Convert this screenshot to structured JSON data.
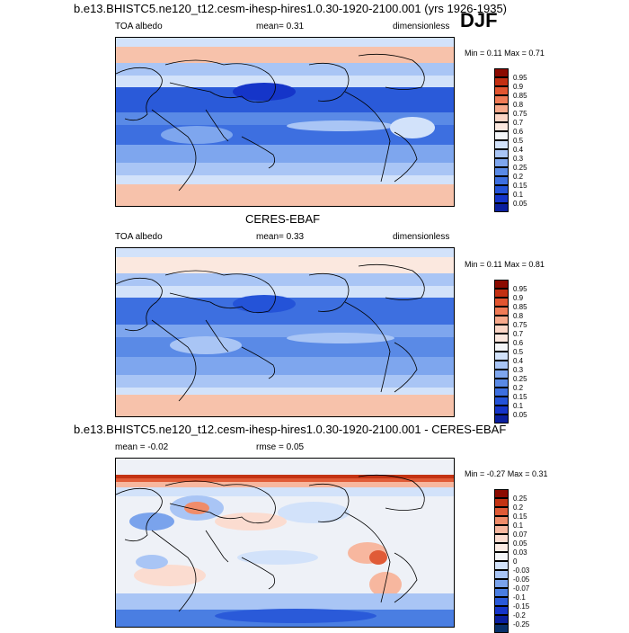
{
  "panel1": {
    "title": "b.e13.BHISTC5.ne120_t12.cesm-ihesp-hires1.0.30-1920-2100.001 (yrs 1926-1935)",
    "season": "DJF",
    "left_label": "TOA albedo",
    "center_label": "mean=   0.31",
    "right_label": "dimensionless",
    "minmax": "Min =   0.11 Max =   0.71",
    "colorbar_levels": [
      "0.95",
      "0.9",
      "0.85",
      "0.8",
      "0.75",
      "0.7",
      "0.6",
      "0.5",
      "0.4",
      "0.3",
      "0.25",
      "0.2",
      "0.15",
      "0.1",
      "0.05"
    ]
  },
  "panel2": {
    "title": "CERES-EBAF",
    "left_label": "TOA albedo",
    "center_label": "mean=   0.33",
    "right_label": "dimensionless",
    "minmax": "Min =   0.11 Max =   0.81",
    "colorbar_levels": [
      "0.95",
      "0.9",
      "0.85",
      "0.8",
      "0.75",
      "0.7",
      "0.6",
      "0.5",
      "0.4",
      "0.3",
      "0.25",
      "0.2",
      "0.15",
      "0.1",
      "0.05"
    ]
  },
  "panel3": {
    "title": "b.e13.BHISTC5.ne120_t12.cesm-ihesp-hires1.0.30-1920-2100.001 - CERES-EBAF",
    "left_label": "mean =  -0.02",
    "center_label": "rmse =   0.05",
    "minmax": "Min =  -0.27 Max =   0.31",
    "colorbar_levels": [
      "0.25",
      "0.2",
      "0.15",
      "0.1",
      "0.07",
      "0.05",
      "0.03",
      "0",
      "-0.03",
      "-0.05",
      "-0.07",
      "-0.1",
      "-0.15",
      "-0.2",
      "-0.25"
    ]
  },
  "colors": {
    "abs_scale": [
      "#08306b",
      "#0a1f9e",
      "#1535c9",
      "#2453d8",
      "#3d6fe0",
      "#5a8ae6",
      "#7ea6ee",
      "#a9c5f5",
      "#d2e2fa",
      "#f4f6f9",
      "#fbd6c6",
      "#f7a98b",
      "#f07b56",
      "#e25530",
      "#c32f12",
      "#8b0a00"
    ],
    "diff_scale": [
      "#08306b",
      "#1535c9",
      "#2a5ad9",
      "#4a7ee2",
      "#7aa3ec",
      "#a9c5f5",
      "#d2e2fa",
      "#f4f6f9",
      "#fbdcd0",
      "#f7b79f",
      "#f08c6a",
      "#e05b37",
      "#c33313",
      "#8b0a00"
    ]
  }
}
